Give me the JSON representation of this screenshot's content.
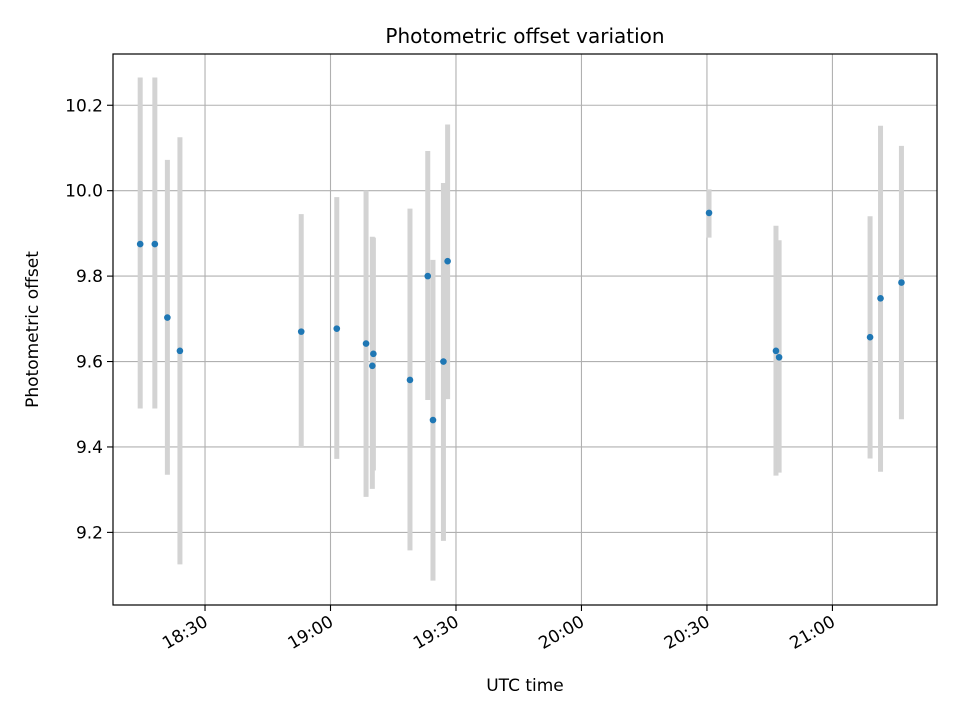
{
  "chart_data": {
    "type": "scatter",
    "title": "Photometric offset variation",
    "xlabel": "UTC time",
    "ylabel": "Photometric offset",
    "x_unit": "UTC time (HH:MM)",
    "xlim": [
      "18:08",
      "21:25"
    ],
    "ylim": [
      9.03,
      10.32
    ],
    "x_ticks": [
      "18:30",
      "19:00",
      "19:30",
      "20:00",
      "20:30",
      "21:00"
    ],
    "y_ticks": [
      9.2,
      9.4,
      9.6,
      9.8,
      10.0,
      10.2
    ],
    "y_tick_labels": [
      "9.2",
      "9.4",
      "9.6",
      "9.8",
      "10.0",
      "10.2"
    ],
    "grid": true,
    "marker_color": "#1f77b4",
    "errorbar_color": "#d3d3d3",
    "series": [
      {
        "points": [
          {
            "x": "18:14:30",
            "y": 9.875,
            "ylo": 9.49,
            "yhi": 10.265
          },
          {
            "x": "18:18:00",
            "y": 9.875,
            "ylo": 9.49,
            "yhi": 10.265
          },
          {
            "x": "18:21:00",
            "y": 9.703,
            "ylo": 9.335,
            "yhi": 10.072
          },
          {
            "x": "18:24:00",
            "y": 9.625,
            "ylo": 9.125,
            "yhi": 10.125
          },
          {
            "x": "18:53:00",
            "y": 9.67,
            "ylo": 9.4,
            "yhi": 9.945
          },
          {
            "x": "19:01:30",
            "y": 9.677,
            "ylo": 9.372,
            "yhi": 9.985
          },
          {
            "x": "19:08:30",
            "y": 9.642,
            "ylo": 9.283,
            "yhi": 10.0
          },
          {
            "x": "19:10:00",
            "y": 9.59,
            "ylo": 9.302,
            "yhi": 9.892
          },
          {
            "x": "19:10:15",
            "y": 9.618,
            "ylo": 9.345,
            "yhi": 9.89
          },
          {
            "x": "19:19:00",
            "y": 9.557,
            "ylo": 9.158,
            "yhi": 9.958
          },
          {
            "x": "19:23:15",
            "y": 9.8,
            "ylo": 9.51,
            "yhi": 10.093
          },
          {
            "x": "19:24:30",
            "y": 9.463,
            "ylo": 9.087,
            "yhi": 9.838
          },
          {
            "x": "19:27:00",
            "y": 9.6,
            "ylo": 9.18,
            "yhi": 10.018
          },
          {
            "x": "19:28:00",
            "y": 9.835,
            "ylo": 9.512,
            "yhi": 10.155
          },
          {
            "x": "20:30:30",
            "y": 9.948,
            "ylo": 9.89,
            "yhi": 10.003
          },
          {
            "x": "20:46:30",
            "y": 9.625,
            "ylo": 9.333,
            "yhi": 9.918
          },
          {
            "x": "20:47:15",
            "y": 9.61,
            "ylo": 9.34,
            "yhi": 9.884
          },
          {
            "x": "21:09:00",
            "y": 9.657,
            "ylo": 9.373,
            "yhi": 9.94
          },
          {
            "x": "21:11:30",
            "y": 9.748,
            "ylo": 9.342,
            "yhi": 10.152
          },
          {
            "x": "21:16:30",
            "y": 9.785,
            "ylo": 9.465,
            "yhi": 10.105
          }
        ]
      }
    ]
  }
}
